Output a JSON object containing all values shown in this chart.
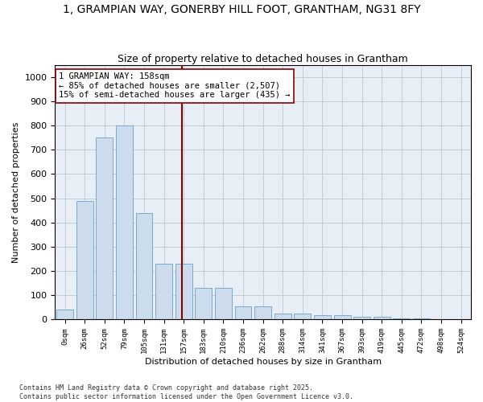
{
  "title": "1, GRAMPIAN WAY, GONERBY HILL FOOT, GRANTHAM, NG31 8FY",
  "subtitle": "Size of property relative to detached houses in Grantham",
  "xlabel": "Distribution of detached houses by size in Grantham",
  "ylabel": "Number of detached properties",
  "bar_labels": [
    "0sqm",
    "26sqm",
    "52sqm",
    "79sqm",
    "105sqm",
    "131sqm",
    "157sqm",
    "183sqm",
    "210sqm",
    "236sqm",
    "262sqm",
    "288sqm",
    "314sqm",
    "341sqm",
    "367sqm",
    "393sqm",
    "419sqm",
    "445sqm",
    "472sqm",
    "498sqm",
    "524sqm"
  ],
  "bar_values": [
    40,
    490,
    750,
    800,
    440,
    230,
    230,
    130,
    130,
    55,
    55,
    25,
    25,
    17,
    17,
    12,
    12,
    5,
    5,
    3,
    3
  ],
  "bar_color": "#ccdcec",
  "bar_edgecolor": "#7aaace",
  "vline_color": "#8b0000",
  "vline_x": 5,
  "annotation_text": "1 GRAMPIAN WAY: 158sqm\n← 85% of detached houses are smaller (2,507)\n15% of semi-detached houses are larger (435) →",
  "annotation_box_color": "#ffffff",
  "annotation_box_edgecolor": "#8b0000",
  "ylim": [
    0,
    1050
  ],
  "yticks": [
    0,
    100,
    200,
    300,
    400,
    500,
    600,
    700,
    800,
    900,
    1000
  ],
  "grid_color": "#c0ccd8",
  "bg_color": "#e8eef5",
  "footnote1": "Contains HM Land Registry data © Crown copyright and database right 2025.",
  "footnote2": "Contains public sector information licensed under the Open Government Licence v3.0.",
  "title_fontsize": 10,
  "subtitle_fontsize": 9,
  "num_bars": 21,
  "vline_bar_index": 6
}
